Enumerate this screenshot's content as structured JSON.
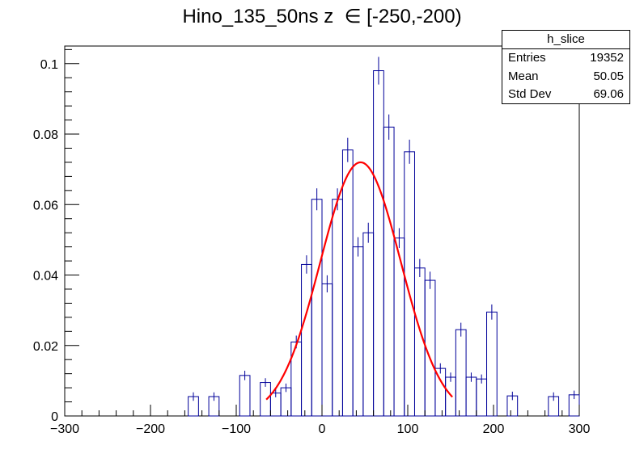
{
  "chart_data": {
    "type": "bar",
    "title": "Hino_135_50ns z  ∈ [-250,-200)",
    "xlabel": "",
    "ylabel": "",
    "xlim": [
      -300,
      300
    ],
    "ylim": [
      0,
      0.105
    ],
    "x_ticks": [
      -300,
      -200,
      -100,
      0,
      100,
      200,
      300
    ],
    "x_tick_labels": [
      "−300",
      "−200",
      "−100",
      "0",
      "100",
      "200",
      "300"
    ],
    "y_ticks": [
      0,
      0.02,
      0.04,
      0.06,
      0.08,
      0.1
    ],
    "y_tick_labels": [
      "0",
      "0.02",
      "0.04",
      "0.06",
      "0.08",
      "0.1"
    ],
    "colors": {
      "histogram": "#000099",
      "fit": "#ff0000",
      "axis": "#000000"
    },
    "bin_width": 12,
    "bin_edges_start": -300,
    "histogram_values": [
      0,
      0,
      0,
      0,
      0,
      0,
      0,
      0,
      0,
      0,
      0,
      0,
      0.0055,
      0,
      0.0055,
      0,
      0,
      0.0115,
      0,
      0.0095,
      0.0065,
      0.008,
      0.021,
      0.043,
      0.0615,
      0.0375,
      0.0615,
      0.0755,
      0.048,
      0.052,
      0.098,
      0.082,
      0.0505,
      0.075,
      0.042,
      0.0385,
      0.0135,
      0.011,
      0.0245,
      0.011,
      0.0105,
      0.0295,
      0,
      0.0057,
      0,
      0,
      0,
      0.0055,
      0,
      0.006
    ],
    "fit": {
      "type": "gaussian",
      "x_range": [
        -65,
        152
      ],
      "constant": 0.072,
      "mean": 45,
      "sigma": 47
    },
    "stats": {
      "title": "h_slice",
      "rows": [
        {
          "label": "Entries",
          "value": "19352"
        },
        {
          "label": "Mean",
          "value": "50.05"
        },
        {
          "label": "Std Dev",
          "value": "69.06"
        }
      ]
    }
  }
}
